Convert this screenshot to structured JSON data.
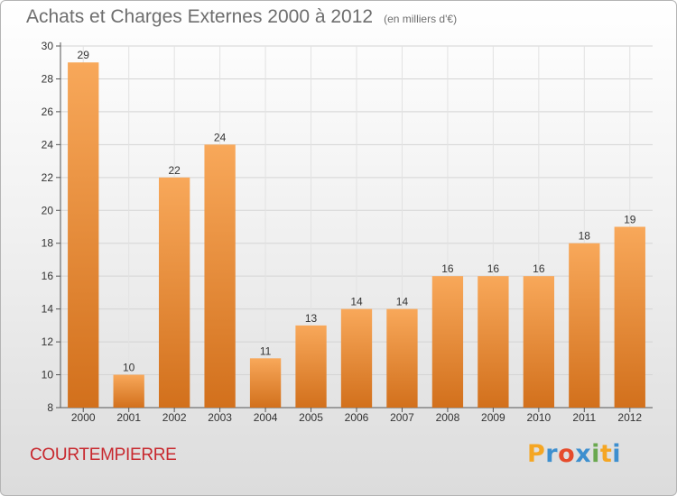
{
  "header": {
    "title": "Achats et Charges Externes 2000 à 2012",
    "unit": "(en milliers d'€)"
  },
  "commune": "COURTEMPIERRE",
  "logo": {
    "text": "Proxiti",
    "letters": [
      "P",
      "r",
      "o",
      "x",
      "i",
      "t",
      "i"
    ],
    "colors": [
      "#f5a623",
      "#3d8fcf",
      "#e64b2b",
      "#3d8fcf",
      "#6aa84f",
      "#f5a623",
      "#3d8fcf"
    ]
  },
  "colors": {
    "bar_light": "#f8a85a",
    "bar_dark": "#d2701c",
    "title": "#6e6e6e",
    "commune": "#c8282e"
  },
  "chart_data": {
    "type": "bar",
    "title": "Achats et Charges Externes 2000 à 2012",
    "subtitle": "(en milliers d'€)",
    "categories": [
      "2000",
      "2001",
      "2002",
      "2003",
      "2004",
      "2005",
      "2006",
      "2007",
      "2008",
      "2009",
      "2010",
      "2011",
      "2012"
    ],
    "values": [
      29,
      10,
      22,
      24,
      11,
      13,
      14,
      14,
      16,
      16,
      16,
      18,
      19
    ],
    "ylim": [
      8,
      30
    ],
    "yticks": [
      8,
      10,
      12,
      14,
      16,
      18,
      20,
      22,
      24,
      26,
      28,
      30
    ],
    "grid": true,
    "legend": "none"
  }
}
